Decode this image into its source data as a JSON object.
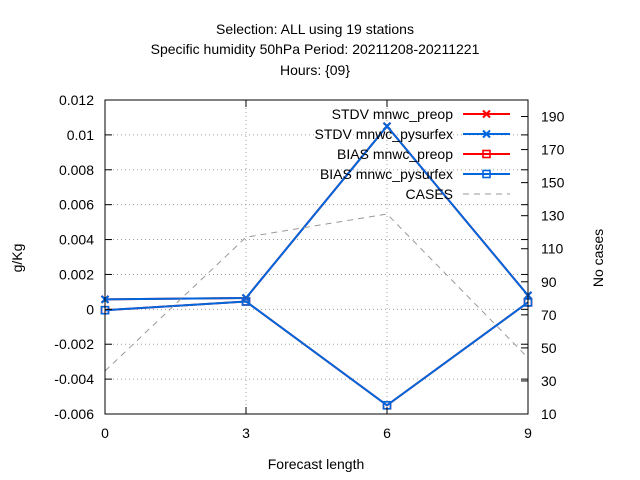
{
  "chart_data": {
    "type": "line",
    "title_lines": [
      "Selection: ALL using    19 stations",
      "Specific humidity 50hPa   Period: 20211208-20211221",
      "Hours: {09}"
    ],
    "xlabel": "Forecast length",
    "ylabel": "g/Kg",
    "y2label": "No cases",
    "x": [
      0,
      3,
      6,
      9
    ],
    "xlim": [
      0,
      9
    ],
    "ylim": [
      -0.006,
      0.012
    ],
    "y2lim": [
      10,
      200
    ],
    "xticks": [
      0,
      3,
      6,
      9
    ],
    "yticks": [
      -0.006,
      -0.004,
      -0.002,
      0,
      0.002,
      0.004,
      0.006,
      0.008,
      0.01,
      0.012
    ],
    "yticklabels": [
      "-0.006",
      "-0.004",
      "-0.002",
      "0",
      "0.002",
      "0.004",
      "0.006",
      "0.008",
      "0.01",
      "0.012"
    ],
    "y2ticks": [
      10,
      30,
      50,
      70,
      90,
      110,
      130,
      150,
      170,
      190
    ],
    "grid": true,
    "legend_position": "top-right",
    "series": [
      {
        "name": "STDV mnwc_preop",
        "color": "#ff0000",
        "marker": "x",
        "axis": "y1",
        "values": [
          0.00057,
          0.00065,
          0.0105,
          0.0008
        ]
      },
      {
        "name": "STDV mnwc_pysurfex",
        "color": "#0066dd",
        "marker": "x",
        "axis": "y1",
        "values": [
          0.00057,
          0.00065,
          0.0105,
          0.0008
        ]
      },
      {
        "name": "BIAS mnwc_preop",
        "color": "#ff0000",
        "marker": "square",
        "axis": "y1",
        "values": [
          -5e-05,
          0.00045,
          -0.0055,
          0.0004
        ]
      },
      {
        "name": "BIAS mnwc_pysurfex",
        "color": "#0066dd",
        "marker": "square",
        "axis": "y1",
        "values": [
          -5e-05,
          0.00045,
          -0.0055,
          0.0004
        ]
      },
      {
        "name": "CASES",
        "color": "#999999",
        "marker": "none",
        "dashed": true,
        "axis": "y2",
        "values": [
          36,
          117,
          131,
          44
        ]
      }
    ]
  }
}
